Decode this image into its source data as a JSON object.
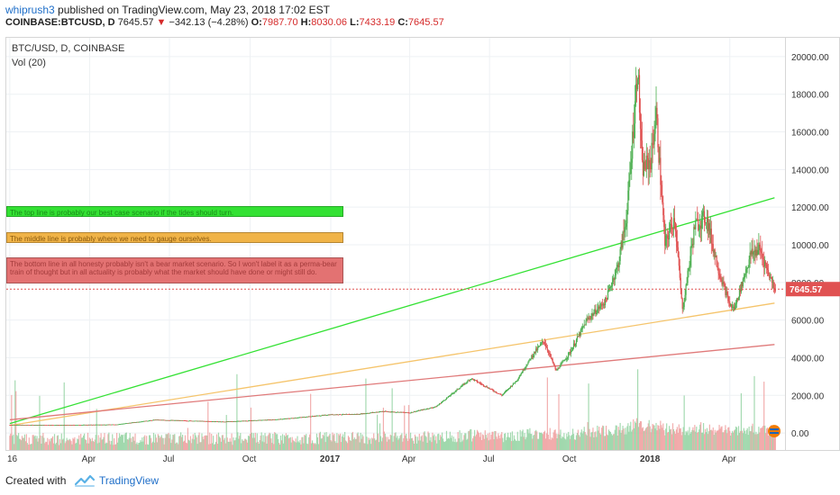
{
  "header": {
    "author": "whiprush3",
    "published": " published on TradingView.com, May 23, 2018 17:02 EST",
    "symbol": "COINBASE:BTCUSD, D",
    "last": "7645.57",
    "change": "−342.13 (−4.28%)",
    "o_label": "O:",
    "o_value": "7987.70",
    "h_label": "H:",
    "h_value": "8030.06",
    "l_label": "L:",
    "l_value": "7433.19",
    "c_label": "C:",
    "c_value": "7645.57"
  },
  "chart_title": "BTC/USD, D, COINBASE",
  "vol_title": "Vol (20)",
  "notes": {
    "green": "The top line is probably our best case scenario if the tides should turn.",
    "orange": "The middle line is probably where we need to gauge ourselves.",
    "red": "The bottom line in all honesty probably isn't a bear market scenario.  So I won't label it as a perma-bear train of thought but in all actuality is probably what the market should have done or might still do."
  },
  "footer": {
    "created": "Created with",
    "brand": "TradingView"
  },
  "colors": {
    "up": "#4caf50",
    "down": "#e05252",
    "green_line": "#33e133",
    "orange_line": "#f5c46b",
    "red_line": "#e07a7a",
    "last_price": "#e05252"
  },
  "chart_data": {
    "type": "candlestick",
    "ylim": [
      -1000,
      21000
    ],
    "y_ticks": [
      "20000.00",
      "18000.00",
      "16000.00",
      "14000.00",
      "12000.00",
      "10000.00",
      "8000.00",
      "6000.00",
      "4000.00",
      "2000.00",
      "0.00"
    ],
    "x_ticks": [
      "16",
      "Apr",
      "Jul",
      "Oct",
      "2017",
      "Apr",
      "Jul",
      "Oct",
      "2018",
      "Apr"
    ],
    "last_price_label": "7645.57",
    "price_path": [
      [
        "2016-01-01",
        430
      ],
      [
        "2016-03-01",
        420
      ],
      [
        "2016-05-01",
        450
      ],
      [
        "2016-06-15",
        700
      ],
      [
        "2016-07-01",
        680
      ],
      [
        "2016-09-01",
        600
      ],
      [
        "2016-11-01",
        720
      ],
      [
        "2017-01-01",
        980
      ],
      [
        "2017-02-01",
        1000
      ],
      [
        "2017-03-01",
        1150
      ],
      [
        "2017-04-01",
        1080
      ],
      [
        "2017-05-01",
        1400
      ],
      [
        "2017-05-25",
        2300
      ],
      [
        "2017-06-10",
        2900
      ],
      [
        "2017-07-15",
        2000
      ],
      [
        "2017-08-01",
        2800
      ],
      [
        "2017-08-20",
        4200
      ],
      [
        "2017-09-01",
        4900
      ],
      [
        "2017-09-15",
        3300
      ],
      [
        "2017-10-01",
        4300
      ],
      [
        "2017-10-20",
        6000
      ],
      [
        "2017-11-10",
        7000
      ],
      [
        "2017-11-25",
        9000
      ],
      [
        "2017-12-05",
        11800
      ],
      [
        "2017-12-17",
        19500
      ],
      [
        "2017-12-22",
        14000
      ],
      [
        "2018-01-01",
        14500
      ],
      [
        "2018-01-07",
        17000
      ],
      [
        "2018-01-17",
        10000
      ],
      [
        "2018-01-28",
        11500
      ],
      [
        "2018-02-06",
        6500
      ],
      [
        "2018-02-20",
        11000
      ],
      [
        "2018-03-05",
        11500
      ],
      [
        "2018-03-20",
        8500
      ],
      [
        "2018-04-01",
        6800
      ],
      [
        "2018-04-06",
        6600
      ],
      [
        "2018-04-25",
        9500
      ],
      [
        "2018-05-05",
        9800
      ],
      [
        "2018-05-15",
        8500
      ],
      [
        "2018-05-23",
        7645
      ]
    ],
    "trend_lines": [
      {
        "name": "top",
        "from": [
          "2016-01-01",
          500
        ],
        "to": [
          "2018-05-22",
          12500
        ]
      },
      {
        "name": "middle",
        "from": [
          "2016-01-01",
          400
        ],
        "to": [
          "2018-05-22",
          6900
        ]
      },
      {
        "name": "bottom",
        "from": [
          "2016-01-01",
          700
        ],
        "to": [
          "2018-05-22",
          4700
        ]
      }
    ]
  }
}
